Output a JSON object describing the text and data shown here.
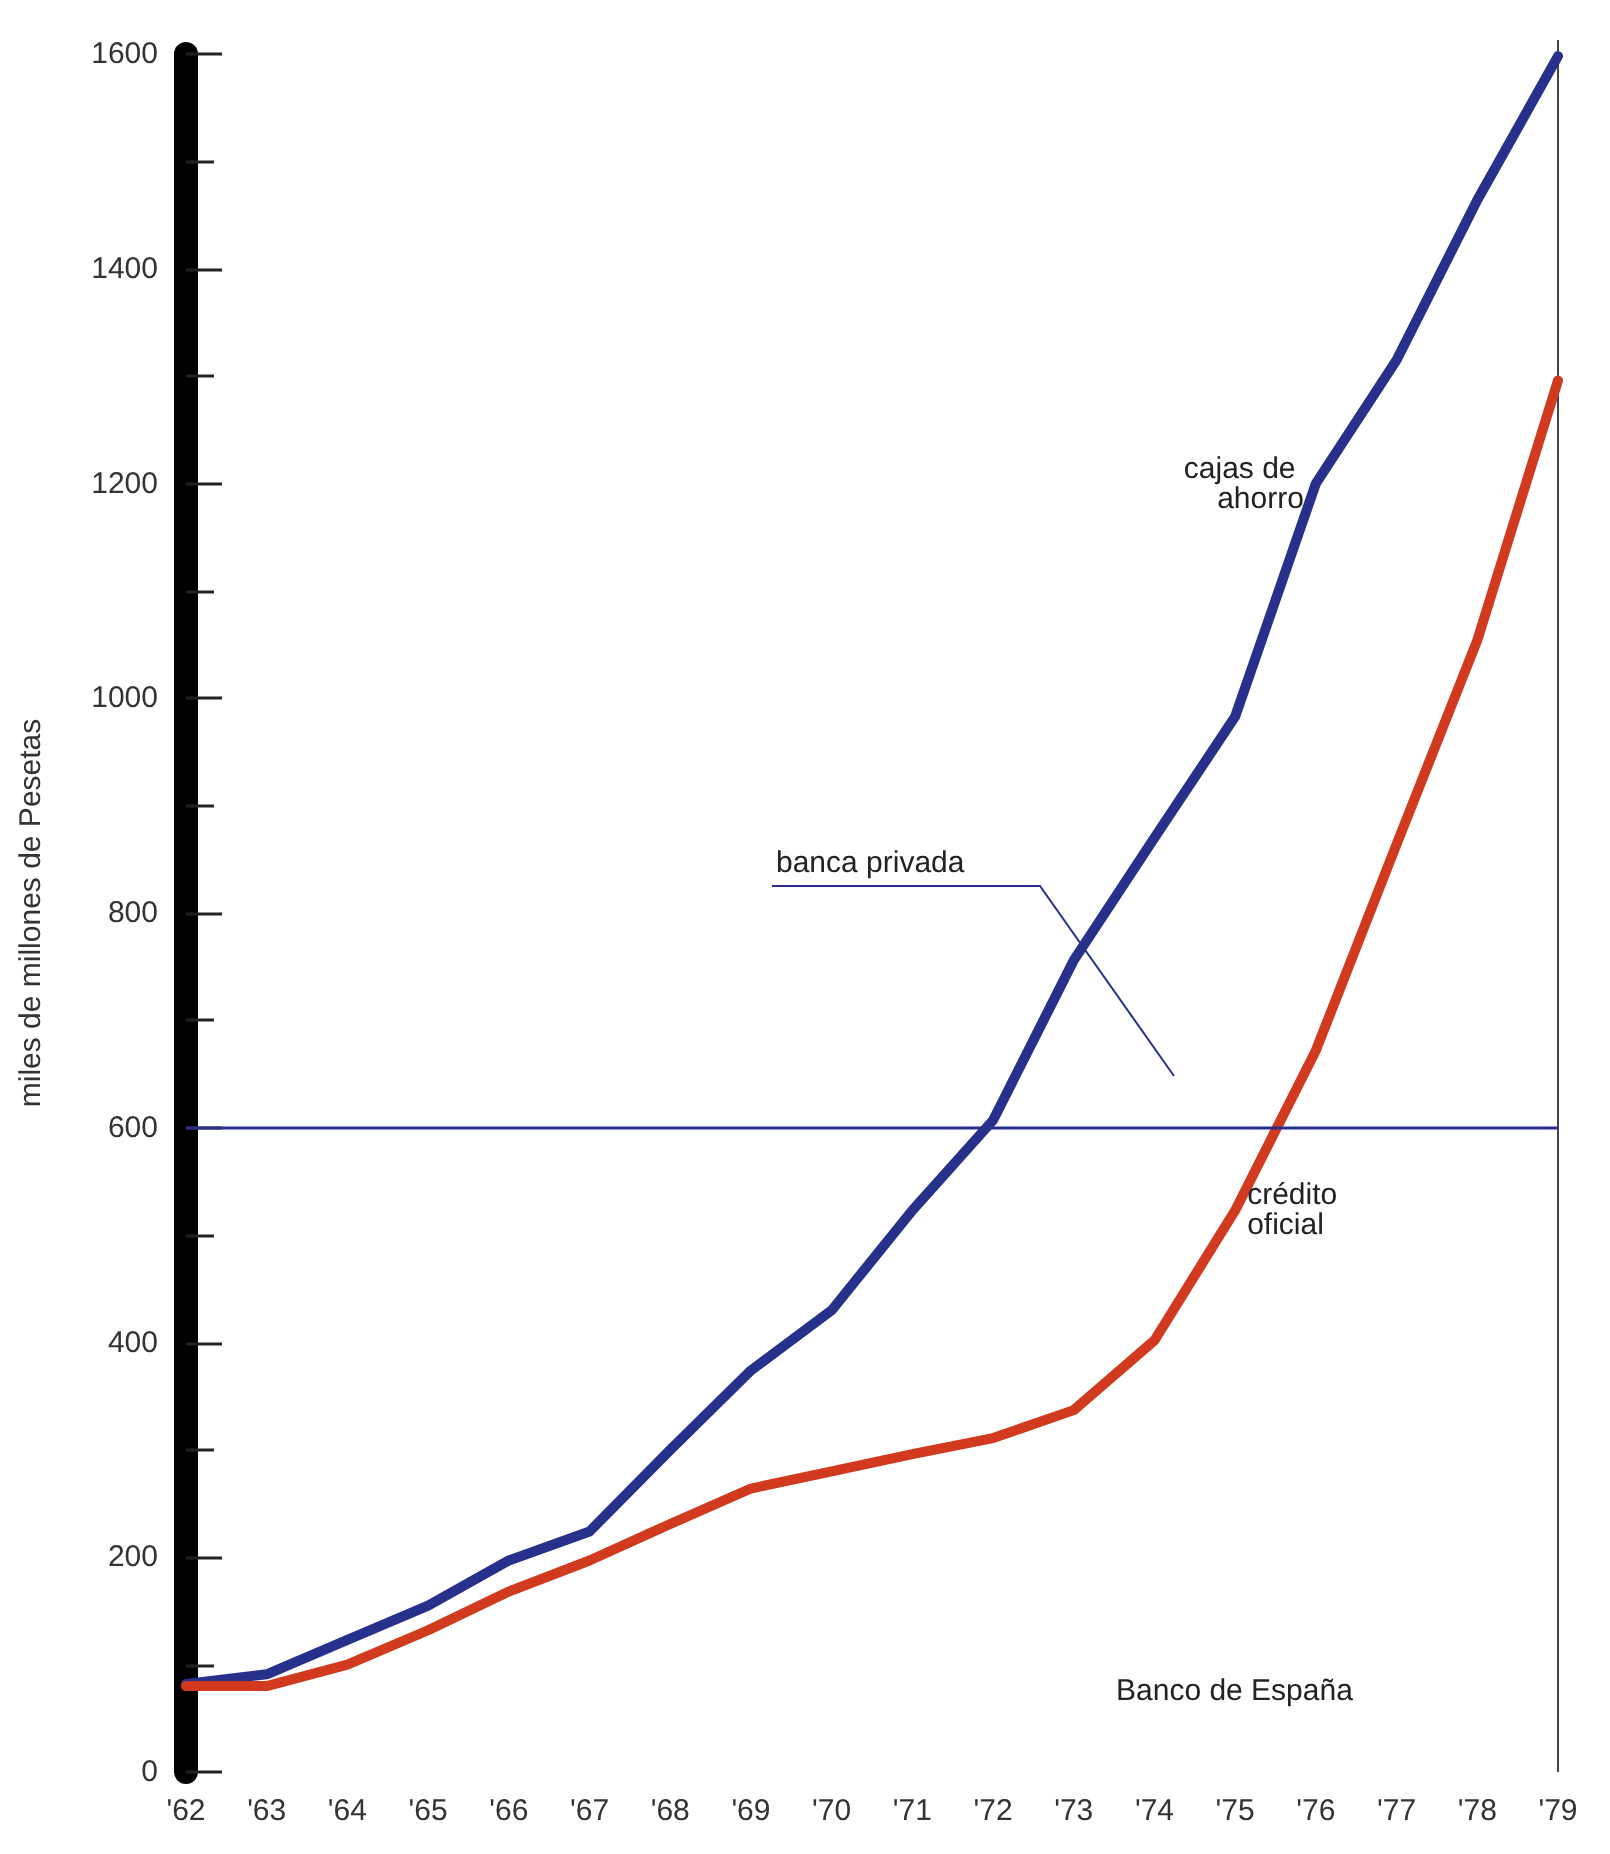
{
  "chart_data": {
    "type": "line",
    "ylabel": "miles de millones de Pesetas",
    "x": [
      1962,
      1963,
      1964,
      1965,
      1966,
      1967,
      1968,
      1969,
      1970,
      1971,
      1972,
      1973,
      1974,
      1975,
      1976,
      1977,
      1978,
      1979
    ],
    "xlim": [
      1962,
      1979
    ],
    "xticks": [
      {
        "value": 1962,
        "label": "'62"
      },
      {
        "value": 1963,
        "label": "'63"
      },
      {
        "value": 1964,
        "label": "'64"
      },
      {
        "value": 1965,
        "label": "'65"
      },
      {
        "value": 1966,
        "label": "'66"
      },
      {
        "value": 1967,
        "label": "'67"
      },
      {
        "value": 1968,
        "label": "'68"
      },
      {
        "value": 1969,
        "label": "'69"
      },
      {
        "value": 1970,
        "label": "'70"
      },
      {
        "value": 1971,
        "label": "'71"
      },
      {
        "value": 1972,
        "label": "'72"
      },
      {
        "value": 1973,
        "label": "'73"
      },
      {
        "value": 1974,
        "label": "'74"
      },
      {
        "value": 1975,
        "label": "'75"
      },
      {
        "value": 1976,
        "label": "'76"
      },
      {
        "value": 1977,
        "label": "'77"
      },
      {
        "value": 1978,
        "label": "'78"
      },
      {
        "value": 1979,
        "label": "'79"
      }
    ],
    "ylim": [
      0,
      1600
    ],
    "yticks": [
      0,
      {
        "value": 100,
        "label": null
      },
      200,
      {
        "value": 300,
        "label": null
      },
      400,
      {
        "value": 500,
        "label": null
      },
      600,
      {
        "value": 700,
        "label": null
      },
      800,
      {
        "value": 900,
        "label": null
      },
      1000,
      {
        "value": 1100,
        "label": null
      },
      1200,
      {
        "value": 1300,
        "label": null
      },
      1400,
      {
        "value": 1500,
        "label": null
      },
      1600
    ],
    "series": [
      {
        "name": "cajas de ahorro",
        "color": "#27308a",
        "values": [
          82,
          91,
          123,
          155,
          197,
          224,
          300,
          374,
          430,
          523,
          607,
          756,
          870,
          983,
          1200,
          1315,
          1464,
          1598
        ]
      },
      {
        "name": "crédito oficial",
        "color": "#d23a1f",
        "values": [
          80,
          80,
          100,
          132,
          168,
          197,
          231,
          264,
          280,
          296,
          311,
          337,
          402,
          523,
          672,
          864,
          1054,
          1296
        ]
      }
    ],
    "ref_lines": [
      {
        "axis": "y",
        "value": 600,
        "color": "#27308a"
      }
    ],
    "annotations": [
      "banca privada",
      "Banco de España"
    ],
    "grid": false,
    "legend": false,
    "marker": "none",
    "line_style": "solid"
  }
}
